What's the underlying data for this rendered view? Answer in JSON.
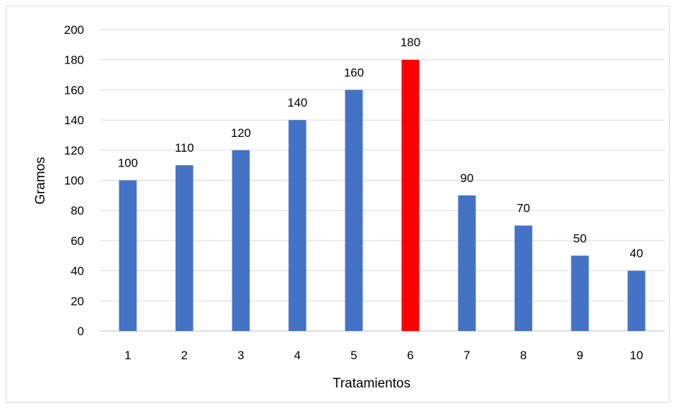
{
  "chart_data": {
    "type": "bar",
    "title": "",
    "xlabel": "Tratamientos",
    "ylabel": "Gramos",
    "categories": [
      "1",
      "2",
      "3",
      "4",
      "5",
      "6",
      "7",
      "8",
      "9",
      "10"
    ],
    "values": [
      100,
      110,
      120,
      140,
      160,
      180,
      90,
      70,
      50,
      40
    ],
    "ylim": [
      0,
      200
    ],
    "yticks": [
      0,
      20,
      40,
      60,
      80,
      100,
      120,
      140,
      160,
      180,
      200
    ],
    "grid": true,
    "legend": "none",
    "data_labels": true,
    "colors": {
      "default_bar": "#4472c4",
      "highlight_bar": "#ff0000",
      "gridline": "#d9d9d9",
      "frame": "#d9d9d9"
    },
    "highlight_category": "6"
  }
}
